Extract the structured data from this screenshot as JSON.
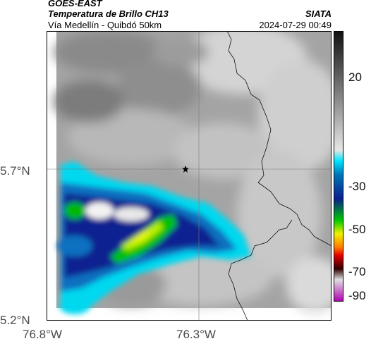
{
  "header": {
    "satellite": "GOES-EAST",
    "product": "Temperatura de Brillo CH13",
    "route": "Vía Medellín - Quibdó 50km",
    "org": "SIATA",
    "datetime": "2024-07-29 00:49"
  },
  "map": {
    "lon_ticks": [
      "76.8°W",
      "76.3°W"
    ],
    "lat_ticks": [
      "5.7°N",
      "5.2°N"
    ],
    "marker_icon": "star-icon"
  },
  "colorbar": {
    "labels": [
      "20",
      "-30",
      "-50",
      "-70",
      "-90"
    ],
    "stops": [
      {
        "color": "#111111"
      },
      {
        "color": "#7a7a7a"
      },
      {
        "color": "#e6e6e6"
      },
      {
        "color": "#00e5ff"
      },
      {
        "color": "#0077b6"
      },
      {
        "color": "#0a1e8c"
      },
      {
        "color": "#00c800"
      },
      {
        "color": "#f0f000"
      },
      {
        "color": "#ff7b00"
      },
      {
        "color": "#e60000"
      },
      {
        "color": "#300000"
      },
      {
        "color": "#e0e0e0"
      },
      {
        "color": "#b000b0"
      }
    ]
  }
}
